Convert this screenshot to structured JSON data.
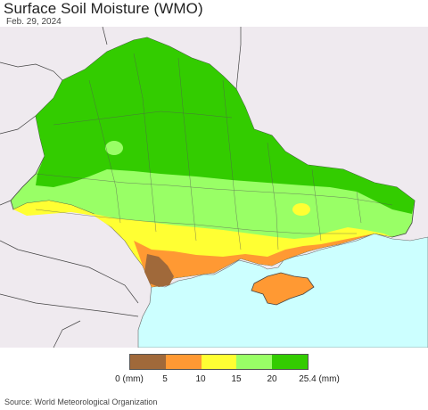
{
  "header": {
    "title": "Surface Soil Moisture (WMO)",
    "date": "Feb. 29, 2024"
  },
  "legend": {
    "bins": [
      {
        "color": "#a0693a"
      },
      {
        "color": "#ff9933"
      },
      {
        "color": "#ffff33"
      },
      {
        "color": "#99ff66"
      },
      {
        "color": "#33cc00"
      }
    ],
    "tick_labels": [
      "0 (mm)",
      "5",
      "10",
      "15",
      "20",
      "25.4 (mm)"
    ]
  },
  "colors": {
    "sea": "#ccffff",
    "land_outside": "#efeaef",
    "border": "#444444"
  },
  "footer": {
    "source": "Source: World Meteorological Organization"
  }
}
